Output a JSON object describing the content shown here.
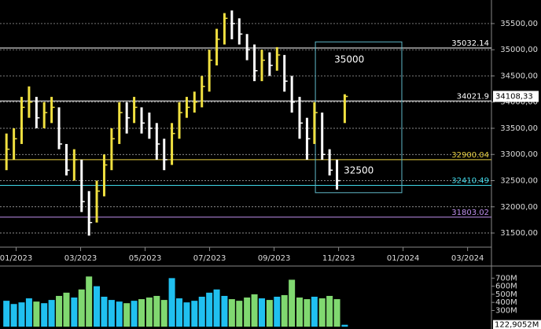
{
  "chart_data": {
    "type": "ohlc",
    "x": [
      -0.3,
      -0.07,
      0.17,
      0.4,
      0.63,
      0.87,
      1.1,
      1.33,
      1.56,
      1.8,
      2.03,
      2.26,
      2.5,
      2.73,
      2.96,
      3.2,
      3.43,
      3.66,
      3.89,
      4.13,
      4.36,
      4.59,
      4.83,
      5.06,
      5.29,
      5.53,
      5.76,
      5.99,
      6.22,
      6.46,
      6.69,
      6.92,
      7.16,
      7.39,
      7.62,
      7.86,
      8.09,
      8.32,
      8.55,
      8.79,
      9.02,
      9.25,
      9.49,
      9.72,
      9.95,
      10.19
    ],
    "high": [
      33400,
      33500,
      34100,
      34300,
      34100,
      34000,
      34100,
      33900,
      33200,
      33100,
      32900,
      32300,
      32500,
      33000,
      33500,
      34000,
      34000,
      34100,
      33900,
      33800,
      33600,
      33300,
      33600,
      34000,
      34100,
      34200,
      34500,
      35000,
      35400,
      35700,
      35750,
      35600,
      35300,
      35100,
      35000,
      34950,
      35050,
      34900,
      34500,
      34100,
      33700,
      34000,
      33800,
      33100,
      32900,
      34150
    ],
    "low": [
      32700,
      32900,
      33200,
      33700,
      33500,
      33500,
      33600,
      33100,
      32600,
      32500,
      31900,
      31450,
      31700,
      32200,
      32700,
      33200,
      33400,
      33600,
      33400,
      33300,
      32900,
      32700,
      32800,
      33300,
      33700,
      33800,
      33900,
      34200,
      34700,
      35100,
      35200,
      35100,
      34800,
      34400,
      34400,
      34500,
      34600,
      34200,
      33800,
      33300,
      32900,
      33200,
      32900,
      32600,
      32330,
      33600
    ],
    "close": [
      33100,
      33300,
      33900,
      34000,
      33700,
      33800,
      33900,
      33200,
      32700,
      32900,
      32100,
      31700,
      32300,
      32800,
      33300,
      33800,
      33700,
      33900,
      33600,
      33500,
      33200,
      32900,
      33400,
      33800,
      33900,
      34000,
      34300,
      34800,
      35200,
      35600,
      35500,
      35300,
      35000,
      34600,
      34800,
      34700,
      34900,
      34400,
      34000,
      33600,
      33300,
      33800,
      33000,
      32700,
      32500,
      34108.33
    ],
    "up_color": "#f0e040",
    "down_color": "#ffffff",
    "xlim": [
      -0.5,
      14.74
    ],
    "xticks": [
      {
        "value": 0,
        "label": "01/2023"
      },
      {
        "value": 2,
        "label": "03/2023"
      },
      {
        "value": 4,
        "label": "05/2023"
      },
      {
        "value": 6,
        "label": "07/2023"
      },
      {
        "value": 8,
        "label": "09/2023"
      },
      {
        "value": 10,
        "label": "11/2023"
      },
      {
        "value": 12,
        "label": "01/2024"
      },
      {
        "value": 14,
        "label": "03/2024"
      }
    ],
    "ylim": [
      31260,
      35950
    ],
    "yticks": [
      {
        "value": 31500,
        "label": "31500,00"
      },
      {
        "value": 32000,
        "label": "32000,00"
      },
      {
        "value": 32500,
        "label": "32500,00"
      },
      {
        "value": 33000,
        "label": "33000,00"
      },
      {
        "value": 33500,
        "label": "33500,00"
      },
      {
        "value": 34000,
        "label": "34000,00"
      },
      {
        "value": 34500,
        "label": "34500,00"
      },
      {
        "value": 35000,
        "label": "35000,00"
      },
      {
        "value": 35500,
        "label": "35500,00"
      }
    ],
    "grid": true,
    "levels": [
      {
        "value": 35032.14,
        "color": "#ffffff"
      },
      {
        "value": 34021.9,
        "color": "#ffffff"
      },
      {
        "value": 32900.04,
        "color": "#e8d040"
      },
      {
        "value": 32410.49,
        "color": "#40d8e8"
      },
      {
        "value": 31803.02,
        "color": "#c090f0"
      }
    ],
    "last_price": {
      "value": 34108.33,
      "label": "34108,33"
    },
    "box": {
      "x": [
        9.28,
        11.96
      ],
      "y": [
        32270,
        35150
      ],
      "color": "#5fb8c8",
      "labels": [
        "35000",
        "32500"
      ]
    },
    "volume": {
      "values": [
        420,
        380,
        400,
        450,
        410,
        390,
        430,
        480,
        520,
        460,
        560,
        720,
        600,
        470,
        430,
        410,
        390,
        420,
        440,
        460,
        480,
        430,
        700,
        450,
        400,
        420,
        470,
        520,
        560,
        480,
        440,
        420,
        460,
        500,
        450,
        430,
        470,
        490,
        680,
        460,
        440,
        470,
        450,
        480,
        440,
        122.9052
      ],
      "up_color": "#20c0f0",
      "down_color": "#80d870",
      "ylim": [
        100,
        830
      ],
      "yticks": [
        {
          "value": 300,
          "label": "300M"
        },
        {
          "value": 400,
          "label": "400M"
        },
        {
          "value": 500,
          "label": "500M"
        },
        {
          "value": 600,
          "label": "600M"
        },
        {
          "value": 700,
          "label": "700M"
        }
      ],
      "last": {
        "value": 122.9052,
        "label": "122,9052M"
      }
    }
  }
}
